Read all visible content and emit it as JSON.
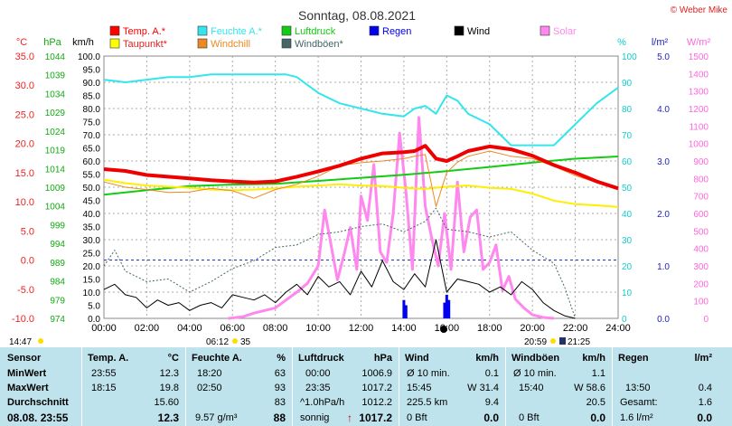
{
  "header": {
    "title": "Sonntag, 08.08.2021",
    "copyright": "© Weber Mike"
  },
  "legend": [
    {
      "name": "Temp. A.*",
      "color": "#ff0000"
    },
    {
      "name": "Feuchte A.*",
      "color": "#33e6ee"
    },
    {
      "name": "Luftdruck",
      "color": "#11cc11"
    },
    {
      "name": "Regen",
      "color": "#0000ee"
    },
    {
      "name": "Wind",
      "color": "#000000"
    },
    {
      "name": "Solar",
      "color": "#ff88ee"
    },
    {
      "name": "Taupunkt*",
      "color": "#ffff00"
    },
    {
      "name": "Windchill",
      "color": "#ee8822"
    },
    {
      "name": "Windböen*",
      "color": "#446666"
    }
  ],
  "axes": {
    "temp": {
      "unit": "°C",
      "ticks": [
        "35.0",
        "30.0",
        "25.0",
        "20.0",
        "15.0",
        "10.0",
        "5.0",
        "0.0",
        "-5.0",
        "-10.0"
      ],
      "min": -10,
      "max": 35,
      "color": "#ee2222"
    },
    "press": {
      "unit": "hPa",
      "ticks": [
        "1044",
        "1039",
        "1034",
        "1029",
        "1024",
        "1019",
        "1014",
        "1009",
        "1004",
        "999",
        "994",
        "989",
        "984",
        "979",
        "974"
      ],
      "min": 974,
      "max": 1044,
      "color": "#11aa11"
    },
    "wind": {
      "unit": "km/h",
      "ticks": [
        "100.0",
        "95.0",
        "90.0",
        "85.0",
        "80.0",
        "75.0",
        "70.0",
        "65.0",
        "60.0",
        "55.0",
        "50.0",
        "45.0",
        "40.0",
        "35.0",
        "30.0",
        "25.0",
        "20.0",
        "15.0",
        "10.0",
        "5.0",
        "0.0"
      ],
      "min": 0,
      "max": 100,
      "color": "#000000"
    },
    "hum": {
      "unit": "%",
      "ticks": [
        "100",
        "90",
        "80",
        "70",
        "60",
        "50",
        "40",
        "30",
        "20",
        "10",
        "0"
      ],
      "min": 0,
      "max": 100,
      "color": "#11cccc"
    },
    "rain": {
      "unit": "l/m²",
      "ticks": [
        "5.0",
        "4.0",
        "3.0",
        "2.0",
        "1.0",
        "0.0"
      ],
      "min": 0,
      "max": 5,
      "color": "#2222bb"
    },
    "solar": {
      "unit": "W/m²",
      "ticks": [
        "1500",
        "1400",
        "1300",
        "1200",
        "1100",
        "1000",
        "900",
        "800",
        "700",
        "600",
        "500",
        "400",
        "300",
        "200",
        "100",
        "0"
      ],
      "min": 0,
      "max": 1500,
      "color": "#ff66dd"
    },
    "x_ticks": [
      "00:00",
      "02:00",
      "04:00",
      "06:00",
      "08:00",
      "10:00",
      "12:00",
      "14:00",
      "16:00",
      "18:00",
      "20:00",
      "22:00",
      "24:00"
    ]
  },
  "sun": {
    "rise": "06:12",
    "rise_extra": "35",
    "set": "20:59",
    "moon": "21:25",
    "left_time": "14:47"
  },
  "chart_data": {
    "type": "line",
    "title": "Sonntag, 08.08.2021",
    "x_unit": "hours",
    "grid": true,
    "series": [
      {
        "name": "Temp. A.*",
        "axis": "temp",
        "x": [
          0,
          1,
          2,
          3,
          4,
          5,
          6,
          7,
          8,
          9,
          10,
          11,
          12,
          13,
          14,
          14.5,
          15,
          15.5,
          16,
          16.5,
          17,
          18,
          19,
          20,
          21,
          22,
          23,
          24
        ],
        "y": [
          15.6,
          15.3,
          14.6,
          14.3,
          14.0,
          13.7,
          13.5,
          13.3,
          13.5,
          14.3,
          15.2,
          16.2,
          17.4,
          18.3,
          18.5,
          18.7,
          19.6,
          17.4,
          17.0,
          17.8,
          18.7,
          19.5,
          19.0,
          17.9,
          16.3,
          15.0,
          13.5,
          12.3
        ]
      },
      {
        "name": "Feuchte A.*",
        "axis": "hum",
        "x": [
          0,
          1,
          2,
          3,
          4,
          5,
          6,
          7,
          8,
          8.5,
          9,
          9.5,
          10,
          11,
          12,
          13,
          14,
          14.5,
          15,
          15.5,
          16,
          16.5,
          17,
          18,
          19,
          20,
          21,
          22,
          23,
          24
        ],
        "y": [
          91,
          90,
          91,
          92,
          92,
          93,
          93,
          93,
          93,
          93,
          92,
          89,
          86,
          82,
          80,
          78,
          77,
          80,
          81,
          78,
          85,
          83,
          78,
          74,
          66,
          66,
          66,
          74,
          82,
          88
        ]
      },
      {
        "name": "Luftdruck",
        "axis": "press",
        "x": [
          0,
          2,
          4,
          6,
          8,
          10,
          12,
          14,
          16,
          18,
          20,
          22,
          24
        ],
        "y": [
          1007,
          1008.2,
          1009.3,
          1009.7,
          1009.9,
          1010.7,
          1011.5,
          1012.3,
          1013.3,
          1014.4,
          1015.6,
          1016.6,
          1017.2
        ]
      },
      {
        "name": "Taupunkt*",
        "axis": "temp",
        "x": [
          0,
          1,
          2,
          3,
          4,
          5,
          6,
          7,
          8,
          9,
          10,
          11,
          12,
          13,
          14,
          15,
          16,
          17,
          18,
          19,
          20,
          21,
          22,
          23,
          24
        ],
        "y": [
          13.8,
          13.2,
          12.8,
          12.6,
          12.4,
          12.1,
          12.0,
          12.1,
          12.3,
          12.6,
          12.8,
          13.0,
          12.8,
          12.7,
          12.4,
          12.2,
          12.6,
          12.8,
          12.4,
          12.2,
          11.4,
          10.2,
          9.6,
          9.4,
          9.1
        ]
      },
      {
        "name": "Windchill",
        "axis": "temp",
        "x": [
          0,
          1,
          2,
          3,
          4,
          5,
          6,
          7,
          8,
          9,
          10,
          11,
          12,
          13,
          14,
          14.5,
          15,
          15.5,
          16,
          16.5,
          17,
          18,
          19,
          20,
          21,
          22,
          23,
          24
        ],
        "y": [
          13.4,
          12.5,
          12.1,
          11.6,
          11.7,
          12.3,
          11.9,
          10.6,
          12.1,
          13.0,
          14.4,
          16.2,
          16.7,
          17.0,
          17.4,
          17.8,
          18.1,
          9.2,
          15.0,
          16.8,
          17.8,
          18.7,
          17.8,
          17.4,
          16.1,
          14.5,
          13.3,
          12.3
        ]
      },
      {
        "name": "Wind",
        "axis": "wind",
        "x": [
          0,
          0.5,
          1,
          1.5,
          2,
          2.5,
          3,
          3.5,
          4,
          4.5,
          5,
          5.5,
          6,
          6.5,
          7,
          7.5,
          8,
          8.5,
          9,
          9.5,
          10,
          10.5,
          11,
          11.5,
          12,
          12.5,
          13,
          13.5,
          14,
          14.5,
          15,
          15.5,
          16,
          16.5,
          17,
          17.5,
          18,
          18.5,
          19,
          19.5,
          20,
          20.5,
          21,
          21.5,
          22
        ],
        "y": [
          11,
          13,
          9,
          8,
          4,
          7,
          5,
          6,
          3,
          5,
          6,
          4,
          9,
          8,
          7,
          9,
          6,
          10,
          13,
          9,
          16,
          12,
          14,
          9,
          18,
          12,
          22,
          14,
          11,
          17,
          12,
          30,
          10,
          15,
          14,
          13,
          10,
          12,
          9,
          14,
          11,
          6,
          3,
          1,
          0
        ]
      },
      {
        "name": "Windböen*",
        "axis": "wind",
        "x": [
          0,
          0.5,
          1,
          2,
          3,
          4,
          5,
          6,
          7,
          8,
          9,
          10,
          11,
          12,
          13,
          14,
          15,
          15.5,
          16,
          17,
          18,
          19,
          20,
          21,
          21.5,
          22
        ],
        "y": [
          20,
          26,
          18,
          14,
          15,
          10,
          14,
          19,
          22,
          27,
          28,
          32,
          33,
          35,
          36,
          33,
          37,
          42,
          34,
          33,
          31,
          33,
          26,
          21,
          12,
          0
        ]
      },
      {
        "name": "Solar",
        "axis": "solar",
        "x": [
          5.8,
          6.5,
          7,
          8,
          9,
          9.5,
          10,
          10.3,
          10.6,
          10.9,
          11.2,
          11.5,
          11.8,
          12,
          12.3,
          12.6,
          12.9,
          13.2,
          13.5,
          13.8,
          14.1,
          14.4,
          14.7,
          15,
          15.3,
          15.6,
          15.9,
          16.2,
          16.5,
          16.8,
          17.1,
          17.4,
          17.7,
          18,
          18.3,
          18.6,
          18.9,
          19.2,
          19.6,
          20,
          20.5,
          21
        ],
        "y": [
          0,
          10,
          30,
          60,
          150,
          200,
          300,
          620,
          420,
          220,
          360,
          520,
          280,
          700,
          560,
          880,
          380,
          320,
          600,
          1060,
          720,
          280,
          1150,
          640,
          460,
          300,
          600,
          280,
          780,
          380,
          580,
          620,
          280,
          320,
          420,
          160,
          240,
          110,
          60,
          20,
          5,
          0
        ]
      },
      {
        "name": "Regen",
        "axis": "rain",
        "x": [
          14,
          14.1,
          15.9,
          16,
          16.1
        ],
        "y": [
          0.35,
          0.25,
          0.3,
          0.45,
          0.35
        ]
      }
    ]
  },
  "table": {
    "headers": {
      "sensor": "Sensor",
      "temp": "Temp. A.",
      "temp_unit": "°C",
      "hum": "Feuchte A.",
      "hum_unit": "%",
      "press": "Luftdruck",
      "press_unit": "hPa",
      "wind": "Wind",
      "wind_unit": "km/h",
      "gust": "Windböen",
      "gust_unit": "km/h",
      "rain": "Regen",
      "rain_unit": "l/m²"
    },
    "rows": {
      "min": {
        "label": "MinWert",
        "temp_time": "23:55",
        "temp": "12.3",
        "hum_time": "18:20",
        "hum": "63",
        "press_time": "00:00",
        "press": "1006.9",
        "wind_a": "Ø 10 min.",
        "wind": "0.1",
        "gust_a": "Ø 10 min.",
        "gust": "1.1",
        "rain_a": "",
        "rain": ""
      },
      "max": {
        "label": "MaxWert",
        "temp_time": "18:15",
        "temp": "19.8",
        "hum_time": "02:50",
        "hum": "93",
        "press_time": "23:35",
        "press": "1017.2",
        "wind_a": "15:45",
        "wind_b": "W 31.4",
        "gust_a": "15:40",
        "gust": "W 58.6",
        "rain_a": "13:50",
        "rain": "0.4"
      },
      "avg": {
        "label": "Durchschnitt",
        "temp": "15.60",
        "hum": "83",
        "press_time": "^1.0hPa/h",
        "press": "1012.2",
        "wind_a": "225.5 km",
        "wind": "9.4",
        "gust": "20.5",
        "rain_a": "Gesamt:",
        "rain": "1.6"
      },
      "now": {
        "label": "08.08. 23:55",
        "temp": "12.3",
        "hum_extra": "9.57 g/m³",
        "hum": "88",
        "press_text": "sonnig",
        "press_arrow": "↑",
        "press": "1017.2",
        "wind_a": "0 Bft",
        "wind": "0.0",
        "gust_a": "0 Bft",
        "gust": "0.0",
        "rain": "1.6 l/m²",
        "rain_b": "0.0"
      }
    }
  }
}
